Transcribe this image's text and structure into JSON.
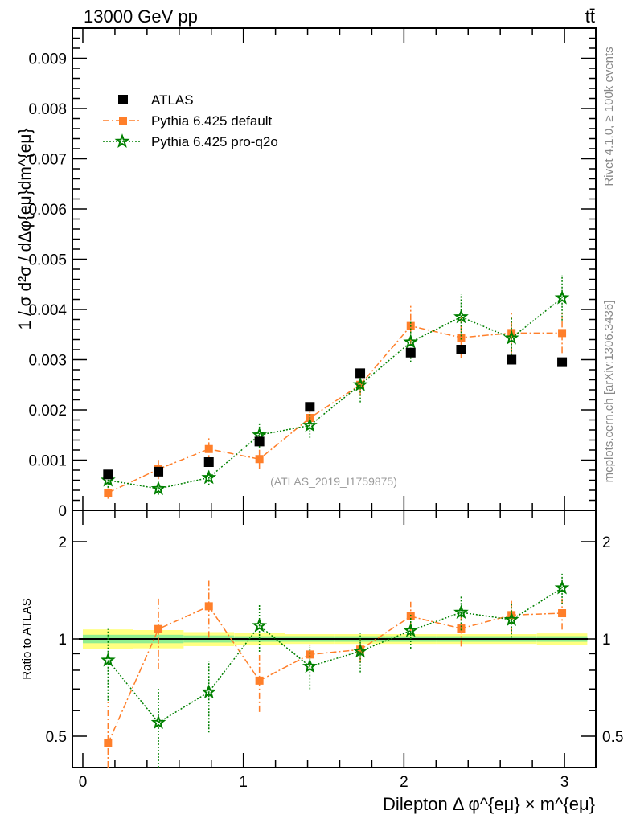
{
  "chart_data": [
    {
      "type": "scatter",
      "title": "13000 GeV pp",
      "title_right": "tt̄",
      "ylabel": "1 / σ  d²σ / dΔφ{eμ}dm^{eμ}",
      "ylim": [
        0,
        0.0096
      ],
      "xlim": [
        -0.065,
        3.195
      ],
      "yticks": [
        0,
        0.001,
        0.002,
        0.003,
        0.004,
        0.005,
        0.006,
        0.007,
        0.008,
        0.009
      ],
      "ytick_labels": [
        "0",
        "0.001",
        "0.002",
        "0.003",
        "0.004",
        "0.005",
        "0.006",
        "0.007",
        "0.008",
        "0.009"
      ],
      "watermark": "(ATLAS_2019_I1759875)",
      "legend_position": "top-left",
      "x": [
        0.157,
        0.471,
        0.785,
        1.1,
        1.414,
        1.728,
        2.042,
        2.356,
        2.67,
        2.985
      ],
      "series": [
        {
          "name": "ATLAS",
          "color": "#000000",
          "marker": "square",
          "values": [
            0.000715,
            0.00077,
            0.00096,
            0.00137,
            0.00206,
            0.00273,
            0.00314,
            0.0032,
            0.003,
            0.00295
          ],
          "errors": [
            0,
            0,
            0,
            0,
            0,
            0,
            0,
            0,
            0,
            0
          ]
        },
        {
          "name": "Pythia 6.425 default",
          "color": "#ff7f2a",
          "marker": "square-small",
          "dash": "8,3,2,3",
          "values": [
            0.00035,
            0.00082,
            0.00122,
            0.00102,
            0.00184,
            0.0025,
            0.00367,
            0.00344,
            0.00353,
            0.00353
          ],
          "errors": [
            0.00012,
            0.0002,
            0.00025,
            0.0002,
            0.00016,
            0.00022,
            0.0004,
            0.0004,
            0.0004,
            0.0004
          ]
        },
        {
          "name": "Pythia 6.425 pro-q2o",
          "color": "#008000",
          "marker": "star",
          "dash": "2,2",
          "values": [
            0.0006,
            0.00043,
            0.00065,
            0.0015,
            0.00169,
            0.0025,
            0.00335,
            0.00385,
            0.00343,
            0.00423
          ],
          "errors": [
            0.00015,
            0.00012,
            0.00015,
            0.00025,
            0.00025,
            0.00035,
            0.0004,
            0.00045,
            0.0004,
            0.00045
          ]
        }
      ]
    },
    {
      "type": "scatter",
      "ylabel": "Ratio to ATLAS",
      "xlabel": "Dilepton Δ φ^{eμ} × m^{eμ}",
      "yscale": "log",
      "ylim": [
        0.4,
        2.5
      ],
      "xlim": [
        -0.065,
        3.195
      ],
      "yticks": [
        0.5,
        1,
        2
      ],
      "ytick_labels": [
        "0.5",
        "1",
        "2"
      ],
      "xticks": [
        0,
        1,
        2,
        3
      ],
      "xtick_labels": [
        "0",
        "1",
        "2",
        "3"
      ],
      "x": [
        0.157,
        0.471,
        0.785,
        1.1,
        1.414,
        1.728,
        2.042,
        2.356,
        2.67,
        2.985
      ],
      "band_outer": [
        0.07,
        0.065,
        0.05,
        0.045,
        0.035,
        0.035,
        0.035,
        0.035,
        0.035,
        0.04
      ],
      "band_inner": [
        0.03,
        0.03,
        0.025,
        0.02,
        0.02,
        0.02,
        0.02,
        0.02,
        0.02,
        0.02
      ],
      "series": [
        {
          "name": "Pythia 6.425 default",
          "color": "#ff7f2a",
          "values": [
            0.475,
            1.073,
            1.262,
            0.743,
            0.895,
            0.927,
            1.174,
            1.077,
            1.185,
            1.201
          ],
          "rel_errors": [
            0.34,
            0.25,
            0.2,
            0.2,
            0.09,
            0.09,
            0.11,
            0.12,
            0.12,
            0.11
          ]
        },
        {
          "name": "Pythia 6.425 pro-q2o",
          "color": "#008000",
          "values": [
            0.859,
            0.551,
            0.685,
            1.099,
            0.822,
            0.916,
            1.061,
            1.208,
            1.147,
            1.438
          ],
          "rel_errors": [
            0.25,
            0.28,
            0.25,
            0.17,
            0.15,
            0.14,
            0.12,
            0.12,
            0.12,
            0.11
          ]
        }
      ]
    }
  ],
  "side_label_top": "Rivet 4.1.0, ≥ 100k events",
  "side_label_bottom": "mcplots.cern.ch [arXiv:1306.3436]"
}
